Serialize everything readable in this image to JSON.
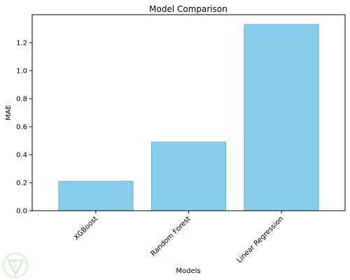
{
  "chart_data": {
    "type": "bar",
    "title": "Model Comparison",
    "xlabel": "Models",
    "ylabel": "MAE",
    "categories": [
      "XGBoost",
      "Random Forest",
      "Linear Regression"
    ],
    "values": [
      0.21,
      0.49,
      1.33
    ],
    "ylim": [
      0,
      1.4
    ],
    "yticks": [
      "0.0",
      "0.2",
      "0.4",
      "0.6",
      "0.8",
      "1.0",
      "1.2"
    ],
    "grid": false,
    "colors": {
      "bar_fill": "#87ceeb",
      "bar_edge": "#5fb3e0",
      "axis": "#000000"
    }
  },
  "watermark": {
    "icon": "leaf-shield-logo-icon"
  }
}
